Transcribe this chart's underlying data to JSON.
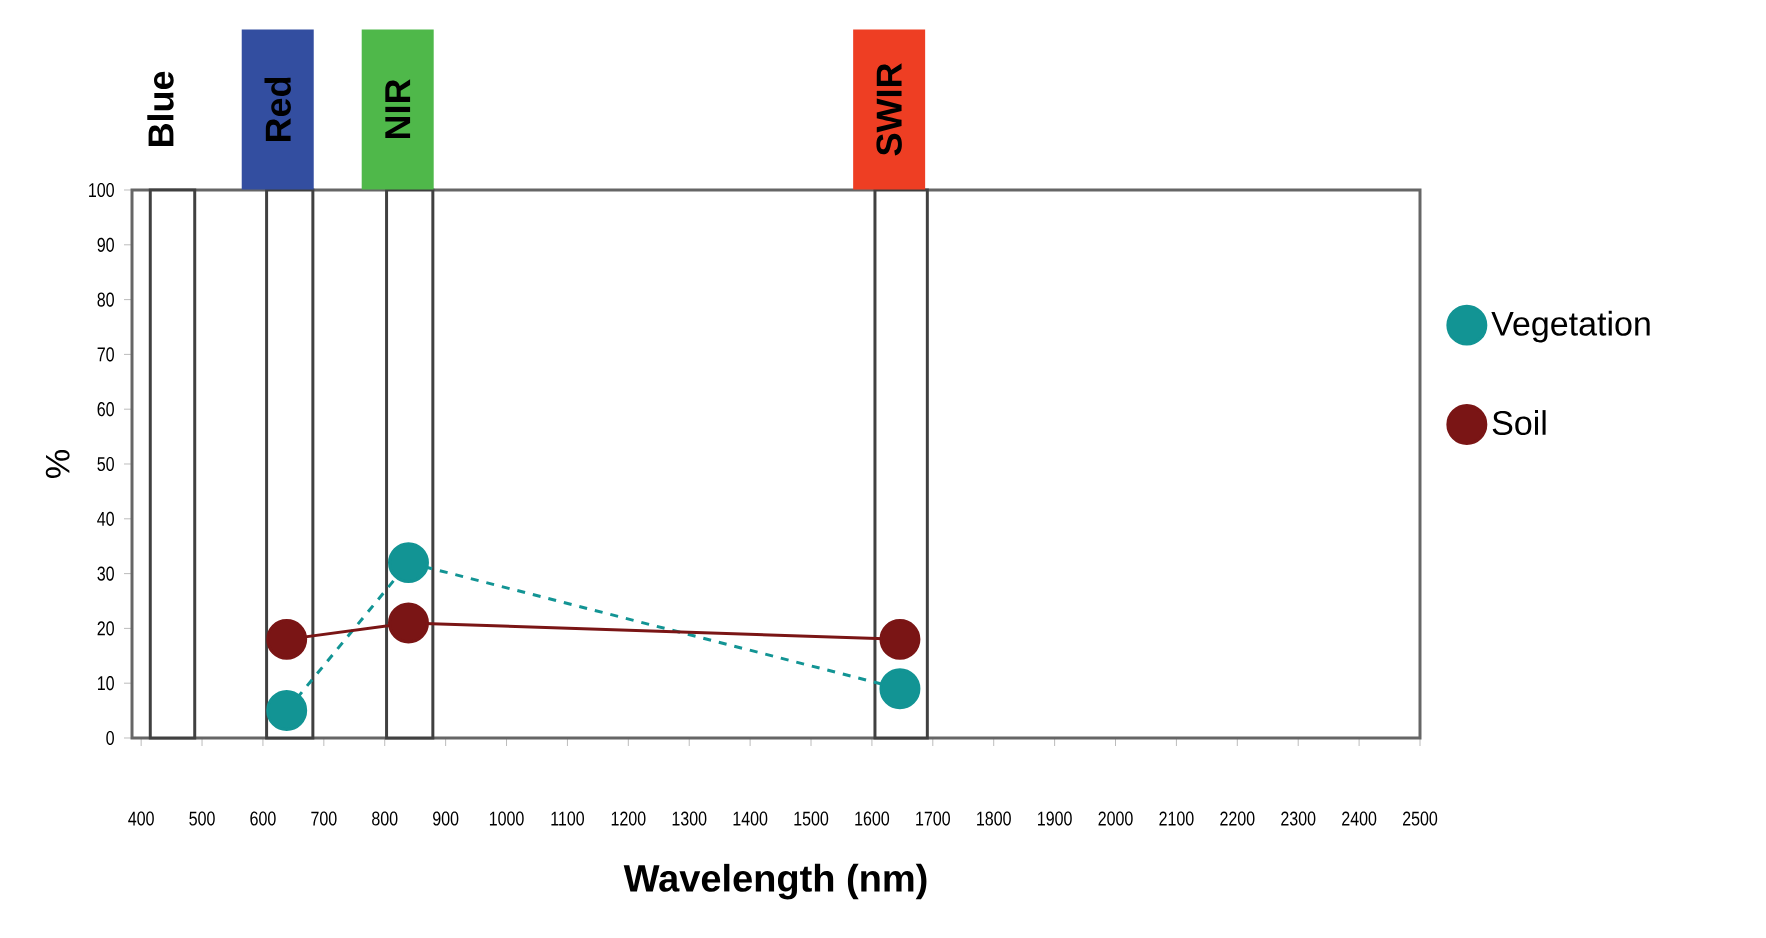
{
  "chart_data": {
    "type": "line",
    "xlabel": "Wavelength (nm)",
    "ylabel": "%",
    "xlim": [
      385,
      2500
    ],
    "ylim": [
      0,
      100
    ],
    "xticks": [
      400,
      500,
      600,
      700,
      800,
      900,
      1000,
      1100,
      1200,
      1300,
      1400,
      1500,
      1600,
      1700,
      1800,
      1900,
      2000,
      2100,
      2200,
      2300,
      2400,
      2500
    ],
    "yticks": [
      0,
      10,
      20,
      30,
      40,
      50,
      60,
      70,
      80,
      90,
      100
    ],
    "marker": "circle",
    "legend": "right",
    "bands": [
      {
        "axis": "x",
        "from": 415,
        "to": 488,
        "label": "Blue"
      },
      {
        "axis": "x",
        "from": 606,
        "to": 682,
        "label": "Red"
      },
      {
        "axis": "x",
        "from": 803,
        "to": 879,
        "label": "NIR"
      },
      {
        "axis": "x",
        "from": 1605,
        "to": 1691,
        "label": "SWIR"
      }
    ],
    "series": [
      {
        "name": "Vegetation",
        "color": "#129494",
        "line_style": "dashed",
        "x": [
          639,
          839,
          1646
        ],
        "values": [
          5,
          32,
          9
        ]
      },
      {
        "name": "Soil",
        "color": "#7a1515",
        "line_style": "solid",
        "x": [
          639,
          839,
          1646
        ],
        "values": [
          18,
          21,
          18
        ]
      }
    ]
  }
}
